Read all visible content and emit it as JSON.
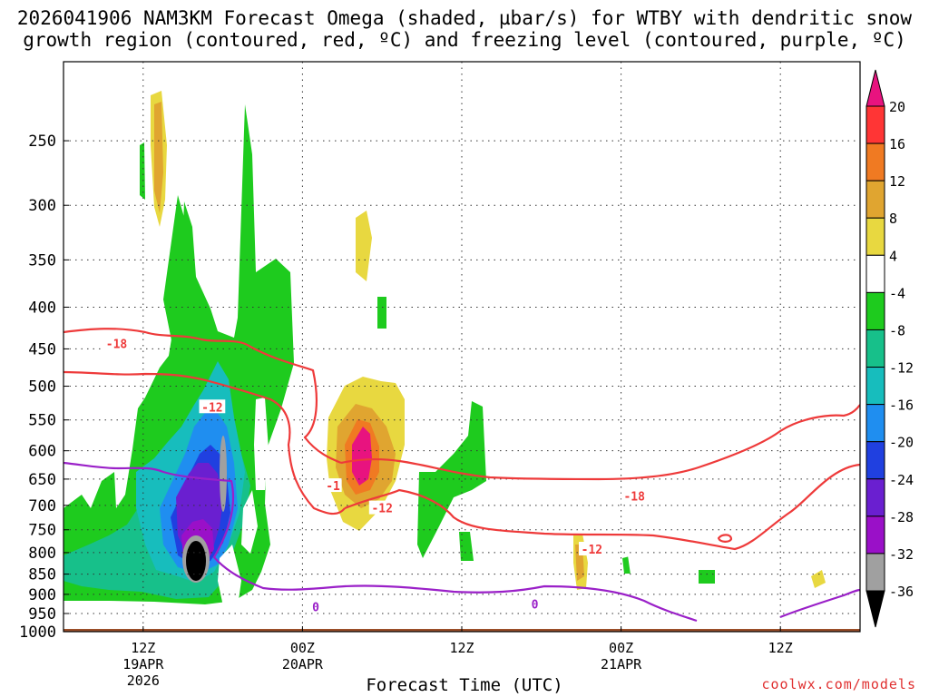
{
  "title": {
    "line1": "2026041906 NAM3KM Forecast Omega (shaded, µbar/s) for WTBY with dendritic snow",
    "line2": "growth region (contoured, red, ºC) and freezing level (contoured, purple, ºC)"
  },
  "footer": "coolwx.com/models",
  "chart_data": {
    "type": "contour",
    "xlabel": "Forecast Time (UTC)",
    "ylabel": "",
    "x_axis": {
      "range_hours": [
        0,
        60
      ],
      "ticks": [
        {
          "hour": 6,
          "lines": [
            "12Z",
            "19APR",
            "2026"
          ]
        },
        {
          "hour": 18,
          "lines": [
            "00Z",
            "20APR"
          ]
        },
        {
          "hour": 30,
          "lines": [
            "12Z"
          ]
        },
        {
          "hour": 42,
          "lines": [
            "00Z",
            "21APR"
          ]
        },
        {
          "hour": 54,
          "lines": [
            "12Z"
          ]
        }
      ]
    },
    "y_axis": {
      "scale": "log",
      "range_hpa": [
        1000,
        200
      ],
      "inverted": true,
      "ticks": [
        250,
        300,
        350,
        400,
        450,
        500,
        550,
        600,
        650,
        700,
        750,
        800,
        850,
        900,
        950,
        1000
      ]
    },
    "grid": true,
    "colorbar": {
      "labels": [
        "20",
        "16",
        "12",
        "8",
        "4",
        "-4",
        "-8",
        "-12",
        "-16",
        "-20",
        "-24",
        "-28",
        "-32",
        "-36"
      ],
      "levels": [
        20,
        16,
        12,
        8,
        4,
        -4,
        -8,
        -12,
        -16,
        -20,
        -24,
        -28,
        -32,
        -36
      ],
      "colors": [
        "#ff3535",
        "#f07a22",
        "#e0a530",
        "#e8d840",
        "#ffffff",
        "#1ecb1e",
        "#17c08a",
        "#17bdbd",
        "#1f8ef0",
        "#2040e0",
        "#6a1fd0",
        "#9a10c8",
        "#a0a0a0"
      ],
      "top_color": "#e8137f",
      "bottom_color": "#000000"
    },
    "colors": {
      "dgz_contour": "#ee3a3a",
      "freezing_contour": "#9a20c8",
      "ground": "#9a4e28"
    },
    "contour_labels": [
      {
        "text": "-18",
        "hour": 4.0,
        "hpa": 443,
        "color": "red"
      },
      {
        "text": "-12",
        "hour": 11.2,
        "hpa": 530,
        "color": "red"
      },
      {
        "text": "-1",
        "hour": 20.3,
        "hpa": 662,
        "color": "red"
      },
      {
        "text": "-12",
        "hour": 24.0,
        "hpa": 705,
        "color": "red"
      },
      {
        "text": "-18",
        "hour": 43.0,
        "hpa": 682,
        "color": "red"
      },
      {
        "text": "-12",
        "hour": 39.8,
        "hpa": 792,
        "color": "red"
      },
      {
        "text": "0",
        "hour": 19.0,
        "hpa": 932,
        "color": "purple"
      },
      {
        "text": "0",
        "hour": 35.5,
        "hpa": 925,
        "color": "purple"
      }
    ],
    "omega_features": [
      {
        "hour": 7.0,
        "hpa": 270,
        "level": 12
      },
      {
        "hour": 22.6,
        "hpa": 640,
        "level": 20
      },
      {
        "hour": 23.6,
        "hpa": 610,
        "level": 12
      },
      {
        "hour": 9.6,
        "hpa": 860,
        "level": -36
      },
      {
        "hour": 9.0,
        "hpa": 780,
        "level": -28
      },
      {
        "hour": 39.5,
        "hpa": 840,
        "level": 12
      },
      {
        "hour": 55.5,
        "hpa": 890,
        "level": 8
      }
    ]
  }
}
